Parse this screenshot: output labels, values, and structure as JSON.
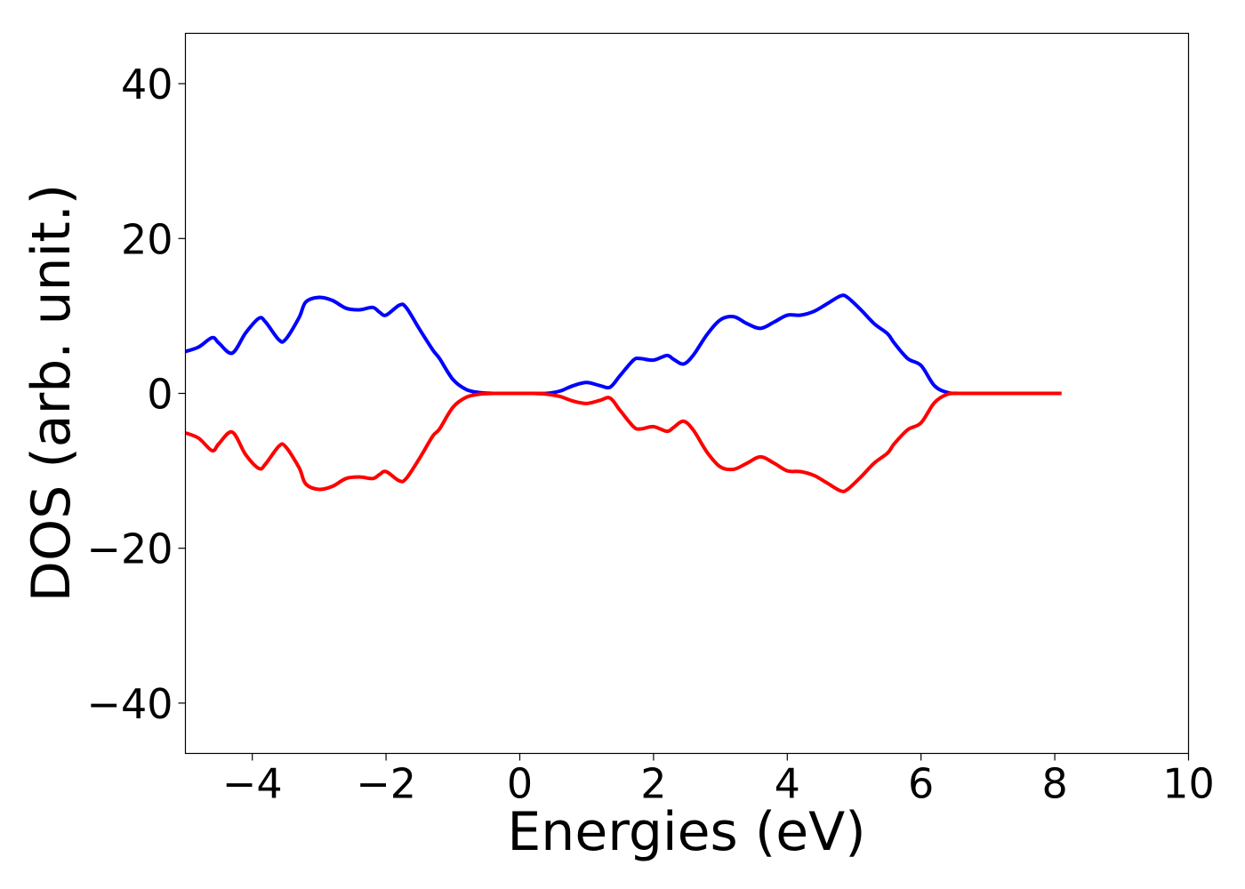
{
  "chart_data": {
    "type": "line",
    "title": "",
    "xlabel": "Energies (eV)",
    "ylabel": "DOS (arb. unit.)",
    "xlim": [
      -5,
      10
    ],
    "ylim": [
      -46.5,
      46.5
    ],
    "xticks": [
      -4,
      -2,
      0,
      2,
      4,
      6,
      8,
      10
    ],
    "xtick_labels": [
      "−4",
      "−2",
      "0",
      "2",
      "4",
      "6",
      "8",
      "10"
    ],
    "yticks": [
      -40,
      -20,
      0,
      20,
      40
    ],
    "ytick_labels": [
      "−40",
      "−20",
      "0",
      "20",
      "40"
    ],
    "grid": false,
    "legend": "none",
    "series": [
      {
        "color": "#0000ff",
        "x": [
          -5.0,
          -4.8,
          -4.6,
          -4.5,
          -4.3,
          -4.1,
          -3.9,
          -3.8,
          -3.6,
          -3.5,
          -3.3,
          -3.2,
          -3.0,
          -2.8,
          -2.6,
          -2.4,
          -2.2,
          -2.1,
          -2.0,
          -1.8,
          -1.7,
          -1.5,
          -1.3,
          -1.2,
          -1.0,
          -0.8,
          -0.6,
          -0.4,
          -0.2,
          0.0,
          0.2,
          0.4,
          0.6,
          0.8,
          1.0,
          1.2,
          1.35,
          1.5,
          1.7,
          1.8,
          2.0,
          2.2,
          2.3,
          2.45,
          2.6,
          2.8,
          3.0,
          3.2,
          3.4,
          3.6,
          3.8,
          4.0,
          4.2,
          4.4,
          4.6,
          4.8,
          4.9,
          5.1,
          5.3,
          5.5,
          5.6,
          5.8,
          6.0,
          6.2,
          6.4,
          6.6,
          7.0,
          7.5,
          8.1
        ],
        "y": [
          5.4,
          6.0,
          7.2,
          6.5,
          5.2,
          7.8,
          9.7,
          9.2,
          6.9,
          7.0,
          9.8,
          11.8,
          12.4,
          12.0,
          11.0,
          10.8,
          11.1,
          10.5,
          10.1,
          11.4,
          11.1,
          8.3,
          5.6,
          4.5,
          1.8,
          0.5,
          0.1,
          0.0,
          0.0,
          0.0,
          0.0,
          0.0,
          0.3,
          1.0,
          1.4,
          1.0,
          0.8,
          2.3,
          4.3,
          4.5,
          4.3,
          4.9,
          4.4,
          3.8,
          5.0,
          7.6,
          9.5,
          9.9,
          9.0,
          8.4,
          9.2,
          10.1,
          10.1,
          10.6,
          11.6,
          12.6,
          12.4,
          10.8,
          9.0,
          7.7,
          6.5,
          4.5,
          3.6,
          1.0,
          0.1,
          0.0,
          0.0,
          0.0,
          0.0
        ]
      },
      {
        "color": "#ff0000",
        "x": [
          -5.0,
          -4.8,
          -4.6,
          -4.5,
          -4.3,
          -4.1,
          -3.9,
          -3.8,
          -3.6,
          -3.5,
          -3.3,
          -3.2,
          -3.0,
          -2.8,
          -2.6,
          -2.4,
          -2.2,
          -2.1,
          -2.0,
          -1.8,
          -1.7,
          -1.5,
          -1.3,
          -1.2,
          -1.0,
          -0.8,
          -0.6,
          -0.4,
          -0.2,
          0.0,
          0.2,
          0.4,
          0.6,
          0.8,
          1.0,
          1.2,
          1.35,
          1.5,
          1.7,
          1.8,
          2.0,
          2.2,
          2.3,
          2.45,
          2.6,
          2.8,
          3.0,
          3.2,
          3.4,
          3.6,
          3.8,
          4.0,
          4.2,
          4.4,
          4.6,
          4.8,
          4.9,
          5.1,
          5.3,
          5.5,
          5.6,
          5.8,
          6.0,
          6.2,
          6.4,
          6.6,
          7.0,
          7.5,
          8.1
        ],
        "y": [
          -5.1,
          -5.8,
          -7.4,
          -6.5,
          -5.0,
          -7.9,
          -9.7,
          -9.1,
          -6.8,
          -6.9,
          -9.6,
          -11.7,
          -12.4,
          -12.0,
          -11.0,
          -10.8,
          -11.0,
          -10.5,
          -10.1,
          -11.3,
          -11.0,
          -8.4,
          -5.5,
          -4.6,
          -1.8,
          -0.5,
          -0.1,
          0.0,
          0.0,
          0.0,
          0.0,
          -0.1,
          -0.4,
          -1.0,
          -1.3,
          -0.9,
          -0.6,
          -2.2,
          -4.3,
          -4.6,
          -4.3,
          -4.9,
          -4.4,
          -3.6,
          -4.8,
          -7.6,
          -9.5,
          -9.8,
          -9.0,
          -8.2,
          -9.0,
          -10.0,
          -10.1,
          -10.6,
          -11.6,
          -12.6,
          -12.4,
          -10.8,
          -9.0,
          -7.7,
          -6.5,
          -4.7,
          -3.8,
          -1.2,
          -0.1,
          0.0,
          0.0,
          0.0,
          0.0
        ]
      }
    ]
  }
}
